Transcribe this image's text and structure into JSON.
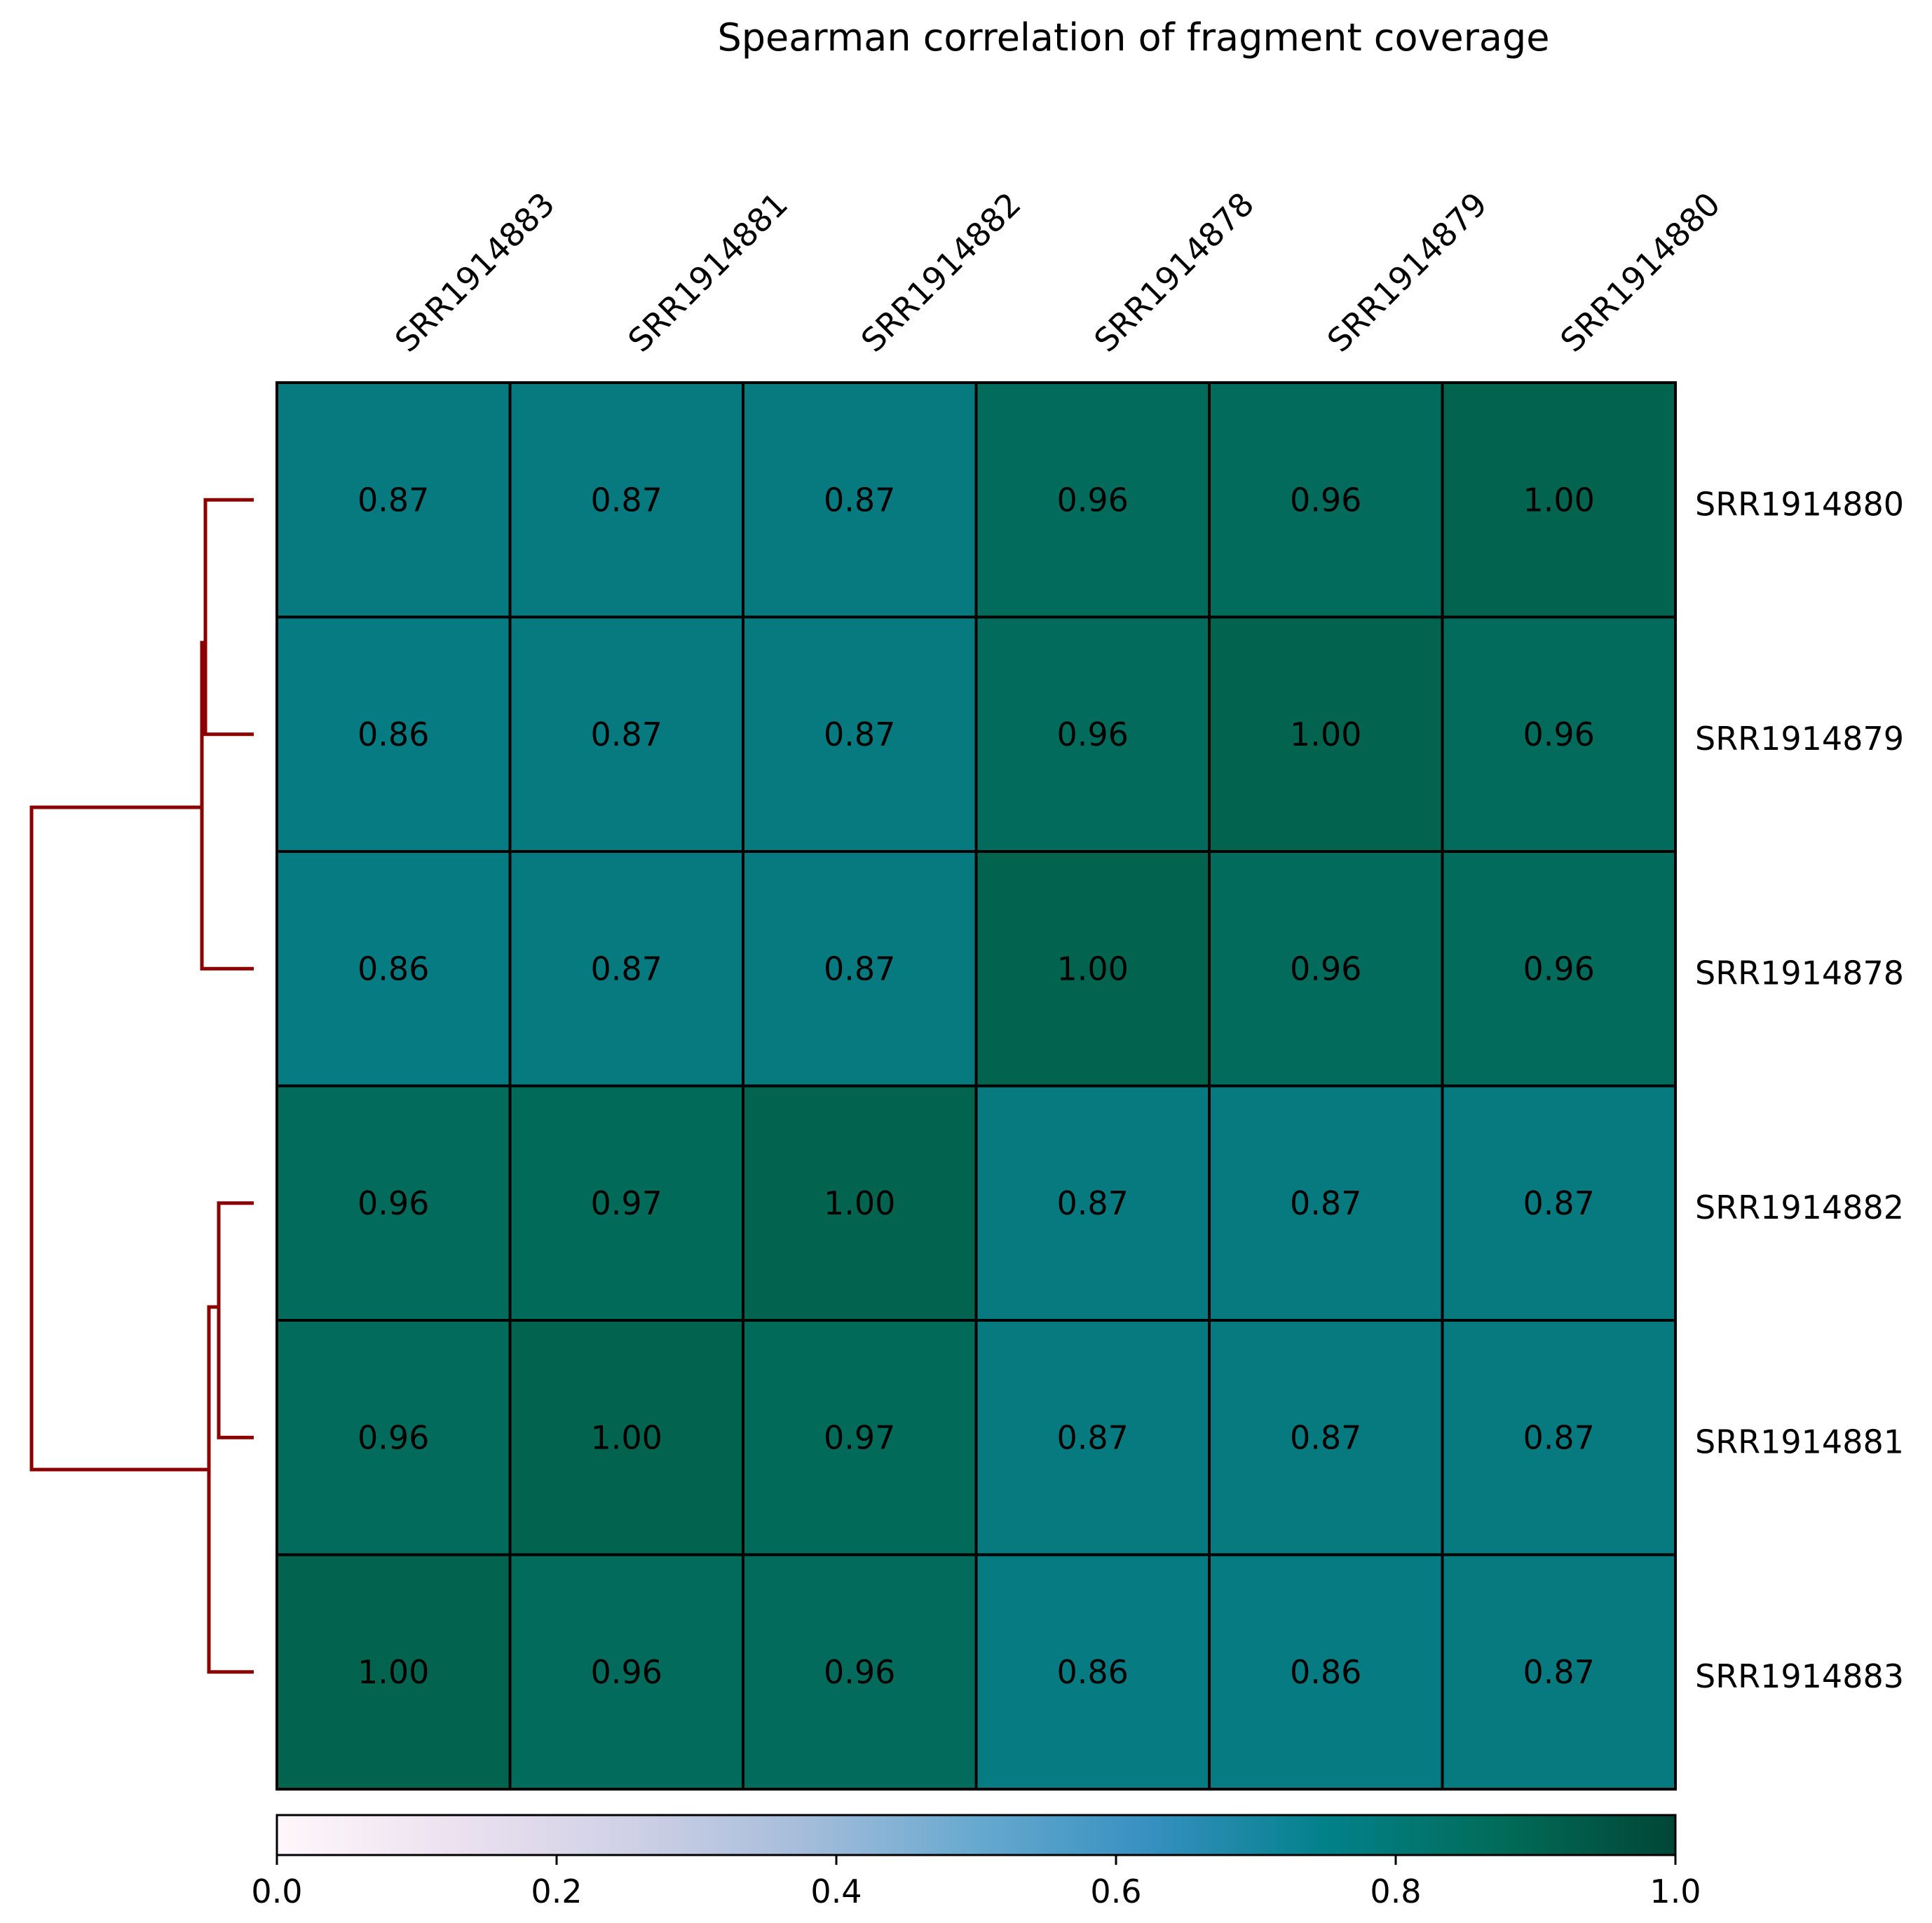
{
  "chart_data": {
    "type": "heatmap",
    "title": "Spearman correlation of fragment coverage",
    "columns": [
      "SRR1914883",
      "SRR1914881",
      "SRR1914882",
      "SRR1914878",
      "SRR1914879",
      "SRR1914880"
    ],
    "rows": [
      "SRR1914880",
      "SRR1914879",
      "SRR1914878",
      "SRR1914882",
      "SRR1914881",
      "SRR1914883"
    ],
    "values": [
      [
        0.87,
        0.87,
        0.87,
        0.96,
        0.96,
        1.0
      ],
      [
        0.86,
        0.87,
        0.87,
        0.96,
        1.0,
        0.96
      ],
      [
        0.86,
        0.87,
        0.87,
        1.0,
        0.96,
        0.96
      ],
      [
        0.96,
        0.97,
        1.0,
        0.87,
        0.87,
        0.87
      ],
      [
        0.96,
        1.0,
        0.97,
        0.87,
        0.87,
        0.87
      ],
      [
        1.0,
        0.96,
        0.96,
        0.86,
        0.86,
        0.87
      ]
    ],
    "value_labels": [
      [
        "0.87",
        "0.87",
        "0.87",
        "0.96",
        "0.96",
        "1.00"
      ],
      [
        "0.86",
        "0.87",
        "0.87",
        "0.96",
        "1.00",
        "0.96"
      ],
      [
        "0.86",
        "0.87",
        "0.87",
        "1.00",
        "0.96",
        "0.96"
      ],
      [
        "0.96",
        "0.97",
        "1.00",
        "0.87",
        "0.87",
        "0.87"
      ],
      [
        "0.96",
        "1.00",
        "0.97",
        "0.87",
        "0.87",
        "0.87"
      ],
      [
        "1.00",
        "0.96",
        "0.96",
        "0.86",
        "0.86",
        "0.87"
      ]
    ],
    "colorbar": {
      "range": [
        0,
        1
      ],
      "ticks": [
        "0.0",
        "0.2",
        "0.4",
        "0.6",
        "0.8",
        "1.0"
      ],
      "colormap": "PuBuGn",
      "placement": "bottom"
    },
    "dendrogram": {
      "placement": "left",
      "color": "#8b0000"
    },
    "colors": {
      "border": "#000000",
      "cell_086": "#077b82",
      "cell_087": "#077a80",
      "cell_096": "#036b5b",
      "cell_097": "#026a59",
      "cell_100": "#02644f"
    }
  }
}
